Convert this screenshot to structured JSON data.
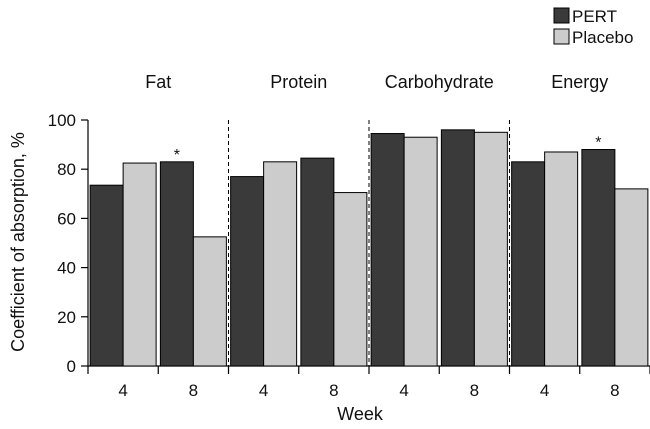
{
  "chart_data": {
    "type": "bar",
    "xlabel": "Week",
    "ylabel": "Coefficient of absorption, %",
    "ylim": [
      0,
      100
    ],
    "yticks": [
      0,
      20,
      40,
      60,
      80,
      100
    ],
    "legend_position": "top-right",
    "groups": [
      "Fat",
      "Protein",
      "Carbohydrate",
      "Energy"
    ],
    "categories": [
      "4",
      "8",
      "4",
      "8",
      "4",
      "8",
      "4",
      "8"
    ],
    "series": [
      {
        "name": "PERT",
        "color": "#3a3a3a",
        "values": [
          73.5,
          83,
          77,
          84.5,
          94.5,
          96,
          83,
          88
        ]
      },
      {
        "name": "Placebo",
        "color": "#cccccc",
        "values": [
          82.5,
          52.5,
          83,
          70.5,
          93,
          95,
          87,
          72
        ]
      }
    ],
    "annotations": [
      {
        "text": "*",
        "category_index": 1,
        "series": "PERT"
      },
      {
        "text": "*",
        "category_index": 7,
        "series": "PERT"
      }
    ]
  }
}
